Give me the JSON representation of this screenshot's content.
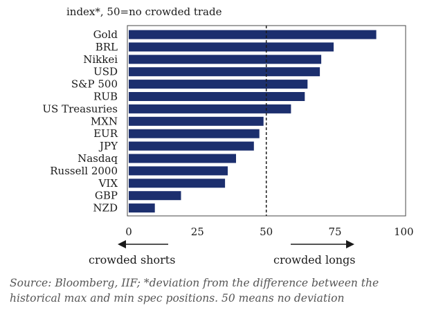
{
  "chart_data": {
    "type": "bar",
    "orientation": "horizontal",
    "subtitle": "index*, 50=no crowded trade",
    "categories": [
      "Gold",
      "BRL",
      "Nikkei",
      "USD",
      "S&P 500",
      "RUB",
      "US Treasuries",
      "MXN",
      "EUR",
      "JPY",
      "Nasdaq",
      "Russell 2000",
      "VIX",
      "GBP",
      "NZD"
    ],
    "values": [
      90,
      74.5,
      70,
      69.5,
      65,
      64,
      59,
      49,
      47.5,
      45.5,
      39,
      36,
      35,
      19,
      9.5
    ],
    "xlim": [
      0,
      100
    ],
    "xticks": [
      0,
      25,
      50,
      75,
      100
    ],
    "reference_line": 50,
    "bar_color": "#1c2f6e",
    "annotations": {
      "left": "crowded shorts",
      "right": "crowded longs"
    }
  },
  "footer": {
    "source_line1": "Source: Bloomberg, IIF; *deviation from the difference between the",
    "source_line2": "historical max and min spec positions. 50 means no deviation"
  }
}
